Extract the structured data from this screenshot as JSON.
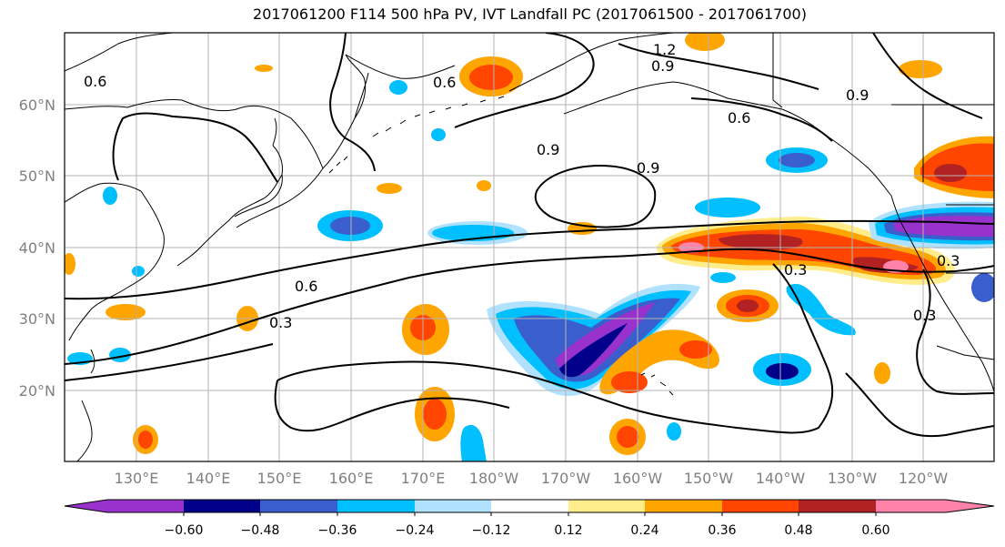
{
  "title": "2017061200 F114 500 hPa PV, IVT Landfall PC (2017061500 - 2017061700)",
  "lat_labels": [
    "60°N",
    "50°N",
    "40°N",
    "30°N",
    "20°N"
  ],
  "lon_labels": [
    "130°E",
    "140°E",
    "150°E",
    "160°E",
    "170°E",
    "180°W",
    "170°W",
    "160°W",
    "150°W",
    "140°W",
    "130°W",
    "120°W"
  ],
  "colorbar": {
    "colors": [
      "#9932CC",
      "#00008B",
      "#3A5FCD",
      "#00BFFF",
      "#B0E2FF",
      "#FFFFFF",
      "#FFEC8B",
      "#FFA500",
      "#FF4500",
      "#B22222",
      "#FF82AB"
    ],
    "tick_labels": [
      "−0.60",
      "−0.48",
      "−0.36",
      "−0.24",
      "−0.12",
      "0.12",
      "0.24",
      "0.36",
      "0.48",
      "0.60"
    ]
  },
  "contour_labels": [
    "0.6",
    "0.9",
    "1.2",
    "0.9",
    "0.9",
    "0.6",
    "0.9",
    "0.6",
    "0.3",
    "0.6",
    "0.3",
    "0.3",
    "0.3"
  ]
}
